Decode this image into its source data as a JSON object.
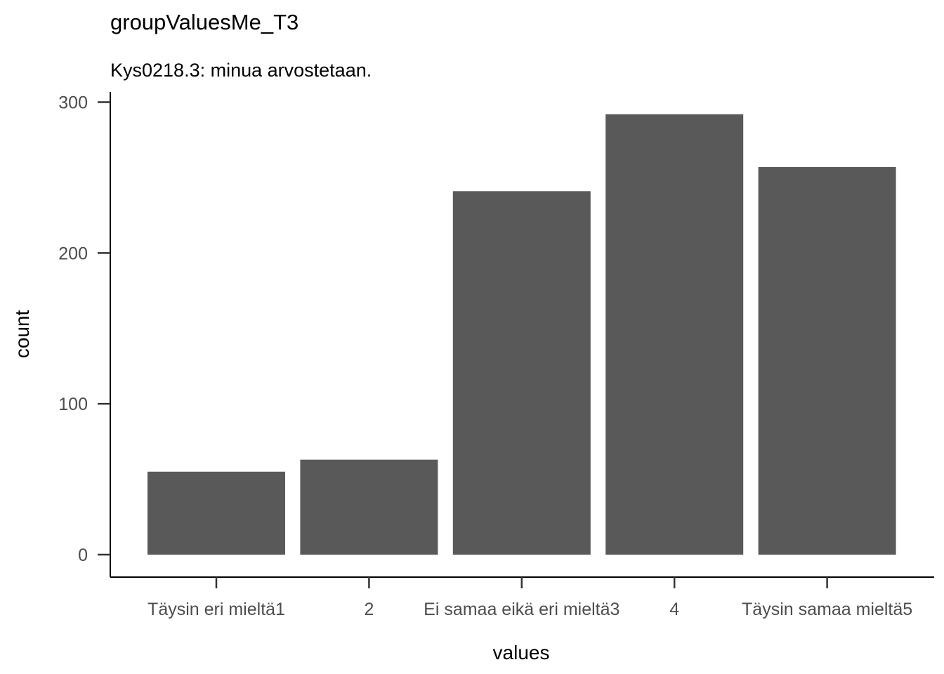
{
  "chart_data": {
    "type": "bar",
    "title": "groupValuesMe_T3",
    "subtitle": "Kys0218.3: minua arvostetaan.",
    "xlabel": "values",
    "ylabel": "count",
    "categories": [
      "Täysin eri mieltä1",
      "2",
      "Ei samaa eikä eri mieltä3",
      "4",
      "Täysin samaa mieltä5"
    ],
    "values": [
      55,
      63,
      241,
      292,
      257
    ],
    "ylim": [
      0,
      310
    ],
    "yticks": [
      0,
      100,
      200,
      300
    ],
    "grid": false,
    "legend": "none",
    "bar_color": "#595959"
  }
}
